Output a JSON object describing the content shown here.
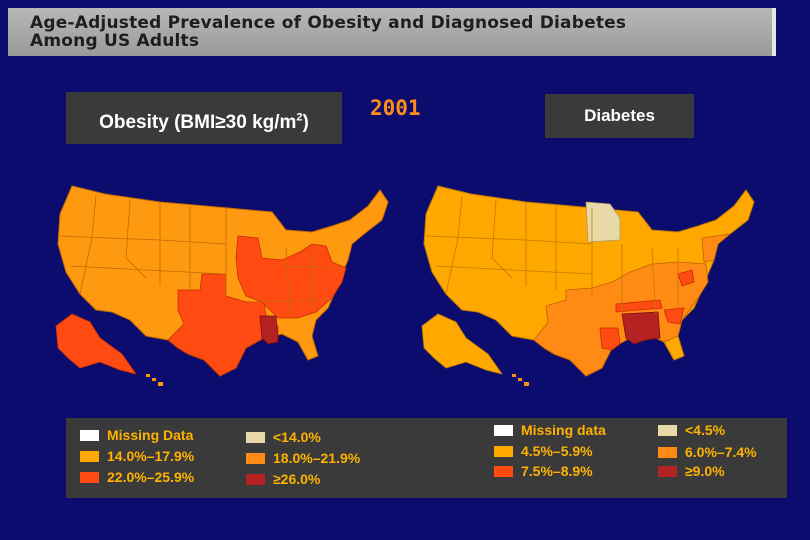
{
  "title": {
    "line1": "Age-Adjusted Prevalence of Obesity and Diagnosed Diabetes",
    "line2": "Among US Adults"
  },
  "year": "2001",
  "obesity_map": {
    "label_main": "Obesity (BMI≥30 kg/m",
    "label_sup": "2",
    "label_end": ")",
    "legend": [
      {
        "label": "Missing Data",
        "color": "#ffffff"
      },
      {
        "label": "<14.0%",
        "color": "#e8d9a8"
      },
      {
        "label": "14.0%–17.9%",
        "color": "#ffa800"
      },
      {
        "label": "18.0%–21.9%",
        "color": "#ff8a14"
      },
      {
        "label": "22.0%–25.9%",
        "color": "#ff4a12"
      },
      {
        "label": "≥26.0%",
        "color": "#b52222"
      }
    ]
  },
  "diabetes_map": {
    "label": "Diabetes",
    "legend": [
      {
        "label": "Missing data",
        "color": "#ffffff"
      },
      {
        "label": "<4.5%",
        "color": "#e8d9a8"
      },
      {
        "label": "4.5%–5.9%",
        "color": "#ffa800"
      },
      {
        "label": "6.0%–7.4%",
        "color": "#ff8a14"
      },
      {
        "label": "7.5%–8.9%",
        "color": "#ff4a12"
      },
      {
        "label": "≥9.0%",
        "color": "#b52222"
      }
    ]
  }
}
